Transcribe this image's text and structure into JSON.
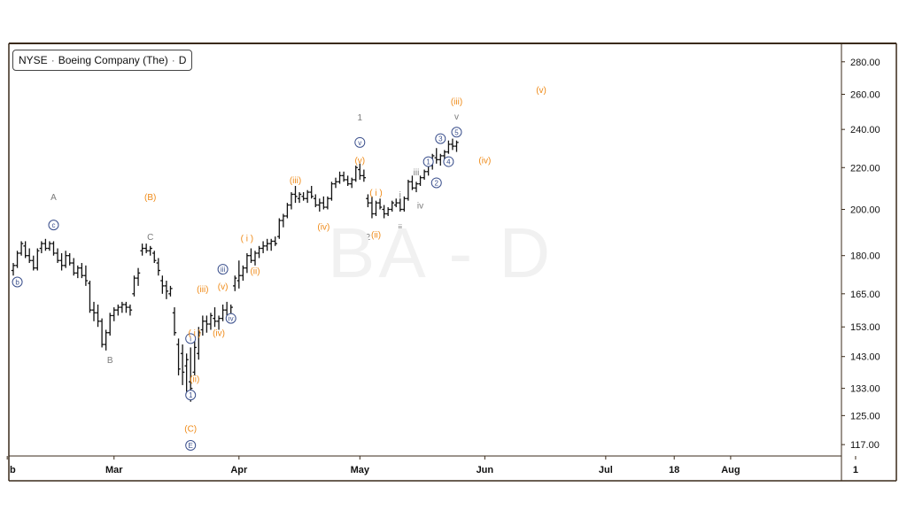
{
  "legend": {
    "symbol": "NYSE",
    "name": "Boeing Company (The)",
    "interval": "D"
  },
  "watermark": "BA - D",
  "colors": {
    "orange": "#ef8a17",
    "gray": "#7a7a7a",
    "blue": "#3a4f8c",
    "bar": "#111111",
    "frame": "#3a2a1a",
    "axis_text": "#111111"
  },
  "chart_data": {
    "type": "ohlc",
    "title": "",
    "y_scale": "log",
    "ylim": [
      114,
      292
    ],
    "y_ticks": [
      {
        "value": 280,
        "label": "280.00"
      },
      {
        "value": 260,
        "label": "260.00"
      },
      {
        "value": 240,
        "label": "240.00"
      },
      {
        "value": 220,
        "label": "220.00"
      },
      {
        "value": 200,
        "label": "200.00"
      },
      {
        "value": 180,
        "label": "180.00"
      },
      {
        "value": 165,
        "label": "165.00"
      },
      {
        "value": 153,
        "label": "153.00"
      },
      {
        "value": 143,
        "label": "143.00"
      },
      {
        "value": 133,
        "label": "133.00"
      },
      {
        "value": 125,
        "label": "125.00"
      },
      {
        "value": 117,
        "label": "117.00"
      }
    ],
    "x_ticks": [
      {
        "day": -1.5,
        "label": "b"
      },
      {
        "day": 25,
        "label": "Mar"
      },
      {
        "day": 56,
        "label": "Apr"
      },
      {
        "day": 86,
        "label": "May"
      },
      {
        "day": 117,
        "label": "Jun"
      },
      {
        "day": 147,
        "label": "Jul"
      },
      {
        "day": 164,
        "label": "18"
      },
      {
        "day": 178,
        "label": "Aug"
      },
      {
        "day": 209,
        "label": "1"
      }
    ],
    "bars": [
      [
        0,
        174,
        177,
        172,
        176
      ],
      [
        1,
        176,
        182,
        175,
        181
      ],
      [
        2,
        181,
        186,
        180,
        185
      ],
      [
        3,
        184,
        186,
        179,
        180
      ],
      [
        4,
        180,
        183,
        177,
        178
      ],
      [
        5,
        178,
        180,
        174,
        175
      ],
      [
        6,
        175,
        183,
        174,
        182
      ],
      [
        7,
        183,
        186,
        181,
        185
      ],
      [
        8,
        185,
        187,
        182,
        183
      ],
      [
        9,
        183,
        186,
        182,
        185
      ],
      [
        10,
        185,
        186,
        180,
        181
      ],
      [
        11,
        181,
        183,
        177,
        178
      ],
      [
        12,
        178,
        181,
        174,
        176
      ],
      [
        13,
        176,
        182,
        175,
        180
      ],
      [
        14,
        180,
        181,
        176,
        177
      ],
      [
        15,
        177,
        179,
        172,
        173
      ],
      [
        16,
        173,
        176,
        171,
        175
      ],
      [
        17,
        175,
        177,
        171,
        172
      ],
      [
        18,
        172,
        176,
        168,
        170
      ],
      [
        19,
        169,
        170,
        158,
        159
      ],
      [
        20,
        159,
        162,
        155,
        158
      ],
      [
        21,
        158,
        161,
        153,
        155
      ],
      [
        22,
        155,
        156,
        146,
        147
      ],
      [
        23,
        147,
        152,
        145,
        151
      ],
      [
        24,
        151,
        158,
        150,
        157
      ],
      [
        25,
        157,
        160,
        155,
        159
      ],
      [
        26,
        159,
        161,
        157,
        160
      ],
      [
        27,
        160,
        162,
        158,
        161
      ],
      [
        28,
        161,
        162,
        158,
        160
      ],
      [
        29,
        160,
        161,
        157,
        159
      ],
      [
        30,
        165,
        172,
        164,
        171
      ],
      [
        31,
        171,
        175,
        168,
        173
      ],
      [
        32,
        182,
        185,
        180,
        183
      ],
      [
        33,
        183,
        185,
        181,
        182
      ],
      [
        34,
        182,
        184,
        180,
        183
      ],
      [
        35,
        181,
        182,
        177,
        178
      ],
      [
        36,
        177,
        179,
        172,
        174
      ],
      [
        37,
        170,
        172,
        165,
        168
      ],
      [
        38,
        168,
        170,
        163,
        166
      ],
      [
        39,
        165,
        168,
        164,
        167
      ],
      [
        40,
        158,
        160,
        150,
        151
      ],
      [
        41,
        147,
        149,
        137,
        139
      ],
      [
        42,
        144,
        147,
        134,
        138
      ],
      [
        43,
        140,
        144,
        132,
        142
      ],
      [
        44,
        135,
        146,
        129,
        133
      ],
      [
        45,
        138,
        150,
        137,
        146
      ],
      [
        46,
        144,
        153,
        142,
        151
      ],
      [
        47,
        152,
        157,
        150,
        155
      ],
      [
        48,
        155,
        157,
        151,
        154
      ],
      [
        49,
        154,
        158,
        152,
        157
      ],
      [
        50,
        156,
        160,
        153,
        155
      ],
      [
        51,
        155,
        157,
        152,
        156
      ],
      [
        52,
        156,
        161,
        155,
        159
      ],
      [
        53,
        159,
        162,
        156,
        157
      ],
      [
        54,
        157,
        161,
        156,
        160
      ],
      [
        55,
        168,
        172,
        166,
        171
      ],
      [
        56,
        170,
        178,
        167,
        172
      ],
      [
        57,
        172,
        176,
        170,
        175
      ],
      [
        58,
        175,
        181,
        173,
        180
      ],
      [
        59,
        180,
        183,
        177,
        178
      ],
      [
        60,
        178,
        182,
        176,
        181
      ],
      [
        61,
        181,
        184,
        179,
        183
      ],
      [
        62,
        183,
        186,
        181,
        184
      ],
      [
        63,
        184,
        187,
        182,
        185
      ],
      [
        64,
        185,
        187,
        182,
        186
      ],
      [
        65,
        186,
        188,
        184,
        185
      ],
      [
        66,
        188,
        196,
        187,
        195
      ],
      [
        67,
        195,
        198,
        192,
        197
      ],
      [
        68,
        197,
        203,
        196,
        202
      ],
      [
        69,
        202,
        208,
        200,
        207
      ],
      [
        70,
        207,
        211,
        203,
        206
      ],
      [
        71,
        205,
        208,
        203,
        207
      ],
      [
        72,
        206,
        208,
        204,
        205
      ],
      [
        73,
        205,
        209,
        203,
        208
      ],
      [
        74,
        208,
        211,
        205,
        206
      ],
      [
        75,
        205,
        207,
        201,
        202
      ],
      [
        76,
        202,
        205,
        199,
        203
      ],
      [
        77,
        203,
        206,
        200,
        201
      ],
      [
        78,
        201,
        206,
        200,
        205
      ],
      [
        79,
        205,
        213,
        204,
        212
      ],
      [
        80,
        212,
        215,
        210,
        213
      ],
      [
        81,
        213,
        218,
        212,
        216
      ],
      [
        82,
        216,
        218,
        213,
        214
      ],
      [
        83,
        214,
        216,
        211,
        212
      ],
      [
        84,
        212,
        215,
        210,
        214
      ],
      [
        85,
        214,
        221,
        213,
        220
      ],
      [
        86,
        219,
        222,
        214,
        216
      ],
      [
        87,
        216,
        219,
        213,
        215
      ],
      [
        88,
        205,
        207,
        201,
        203
      ],
      [
        89,
        203,
        206,
        196,
        198
      ],
      [
        90,
        198,
        204,
        197,
        203
      ],
      [
        91,
        203,
        205,
        200,
        201
      ],
      [
        92,
        200,
        202,
        196,
        198
      ],
      [
        93,
        198,
        201,
        197,
        200
      ],
      [
        94,
        200,
        204,
        199,
        203
      ],
      [
        95,
        202,
        205,
        201,
        203
      ],
      [
        96,
        203,
        205,
        199,
        200
      ],
      [
        97,
        200,
        206,
        199,
        205
      ],
      [
        98,
        205,
        214,
        204,
        213
      ],
      [
        99,
        213,
        216,
        209,
        210
      ],
      [
        100,
        210,
        213,
        208,
        212
      ],
      [
        101,
        212,
        216,
        211,
        215
      ],
      [
        102,
        215,
        219,
        214,
        218
      ],
      [
        103,
        218,
        222,
        216,
        221
      ],
      [
        104,
        221,
        227,
        219,
        226
      ],
      [
        105,
        225,
        230,
        222,
        224
      ],
      [
        106,
        224,
        227,
        221,
        226
      ],
      [
        107,
        226,
        229,
        224,
        228
      ],
      [
        108,
        228,
        234,
        227,
        232
      ],
      [
        109,
        232,
        235,
        229,
        231
      ],
      [
        110,
        231,
        234,
        228,
        233
      ]
    ],
    "annotations": [
      {
        "day": 1,
        "price": 169.5,
        "text": "b",
        "style": "circle",
        "color": "blue"
      },
      {
        "day": 10,
        "price": 206,
        "text": "A",
        "style": "plain",
        "color": "gray"
      },
      {
        "day": 10,
        "price": 193,
        "text": "c",
        "style": "circle",
        "color": "blue"
      },
      {
        "day": 24,
        "price": 142,
        "text": "B",
        "style": "plain",
        "color": "gray"
      },
      {
        "day": 34,
        "price": 206,
        "text": "(B)",
        "style": "plain",
        "color": "orange"
      },
      {
        "day": 34,
        "price": 188,
        "text": "C",
        "style": "plain",
        "color": "gray"
      },
      {
        "day": 44,
        "price": 121.5,
        "text": "(C)",
        "style": "plain",
        "color": "orange"
      },
      {
        "day": 44,
        "price": 116.8,
        "text": "E",
        "style": "circle",
        "color": "blue"
      },
      {
        "day": 44,
        "price": 131,
        "text": "1",
        "style": "circle",
        "color": "blue"
      },
      {
        "day": 44,
        "price": 149,
        "text": "i",
        "style": "circle",
        "color": "blue"
      },
      {
        "day": 45,
        "price": 151,
        "text": "( i )",
        "style": "plain",
        "color": "orange"
      },
      {
        "day": 45,
        "price": 136,
        "text": "(ii)",
        "style": "plain",
        "color": "orange"
      },
      {
        "day": 47,
        "price": 167,
        "text": "(iii)",
        "style": "plain",
        "color": "orange"
      },
      {
        "day": 51,
        "price": 151,
        "text": "(iv)",
        "style": "plain",
        "color": "orange"
      },
      {
        "day": 52,
        "price": 168,
        "text": "(v)",
        "style": "plain",
        "color": "orange"
      },
      {
        "day": 52,
        "price": 174.5,
        "text": "iii",
        "style": "circle",
        "color": "blue"
      },
      {
        "day": 54,
        "price": 156,
        "text": "iv",
        "style": "circle",
        "color": "blue"
      },
      {
        "day": 58,
        "price": 187.5,
        "text": "( i )",
        "style": "plain",
        "color": "orange"
      },
      {
        "day": 60,
        "price": 174,
        "text": "(ii)",
        "style": "plain",
        "color": "orange"
      },
      {
        "day": 70,
        "price": 214,
        "text": "(iii)",
        "style": "plain",
        "color": "orange"
      },
      {
        "day": 77,
        "price": 192.5,
        "text": "(iv)",
        "style": "plain",
        "color": "orange"
      },
      {
        "day": 86,
        "price": 247,
        "text": "1",
        "style": "plain",
        "color": "gray"
      },
      {
        "day": 86,
        "price": 233,
        "text": "v",
        "style": "circle",
        "color": "blue"
      },
      {
        "day": 86,
        "price": 224,
        "text": "(v)",
        "style": "plain",
        "color": "orange"
      },
      {
        "day": 90,
        "price": 208,
        "text": "( i )",
        "style": "plain",
        "color": "orange"
      },
      {
        "day": 90,
        "price": 189,
        "text": "(ii)",
        "style": "plain",
        "color": "orange"
      },
      {
        "day": 88,
        "price": 188,
        "text": "2",
        "style": "plain",
        "color": "gray"
      },
      {
        "day": 96,
        "price": 207,
        "text": "i",
        "style": "plain",
        "color": "gray"
      },
      {
        "day": 96,
        "price": 192,
        "text": "ii",
        "style": "plain",
        "color": "gray"
      },
      {
        "day": 100,
        "price": 218,
        "text": "iii",
        "style": "plain",
        "color": "gray"
      },
      {
        "day": 101,
        "price": 202,
        "text": "iv",
        "style": "plain",
        "color": "gray"
      },
      {
        "day": 103,
        "price": 223,
        "text": "1",
        "style": "circle",
        "color": "blue"
      },
      {
        "day": 105,
        "price": 212.5,
        "text": "2",
        "style": "circle",
        "color": "blue"
      },
      {
        "day": 106,
        "price": 235,
        "text": "3",
        "style": "circle",
        "color": "blue"
      },
      {
        "day": 108,
        "price": 223,
        "text": "4",
        "style": "circle",
        "color": "blue"
      },
      {
        "day": 110,
        "price": 238.5,
        "text": "5",
        "style": "circle",
        "color": "blue"
      },
      {
        "day": 110,
        "price": 247.5,
        "text": "v",
        "style": "plain",
        "color": "gray"
      },
      {
        "day": 110,
        "price": 256,
        "text": "(iii)",
        "style": "plain",
        "color": "orange"
      },
      {
        "day": 117,
        "price": 224,
        "text": "(iv)",
        "style": "plain",
        "color": "orange"
      },
      {
        "day": 131,
        "price": 263,
        "text": "(v)",
        "style": "plain",
        "color": "orange"
      }
    ]
  }
}
